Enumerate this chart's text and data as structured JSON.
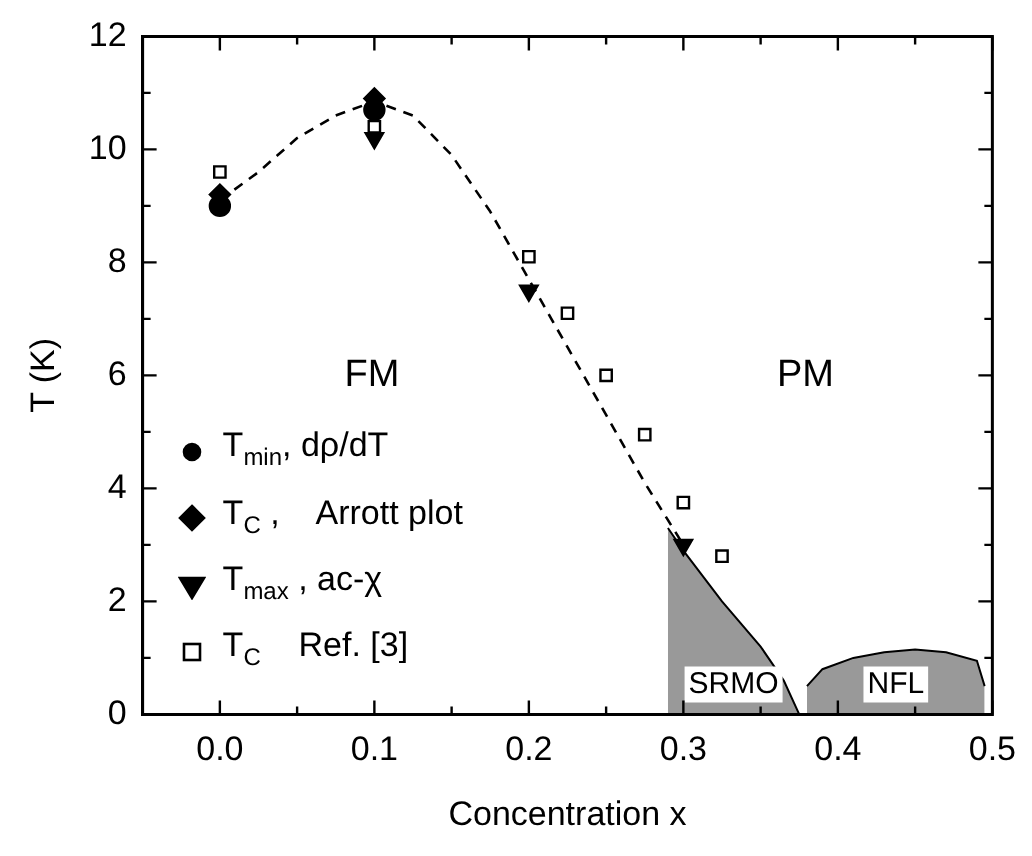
{
  "chart_data": {
    "type": "scatter",
    "xlabel": "Concentration x",
    "ylabel": "T (K)",
    "xlim": [
      -0.05,
      0.5
    ],
    "ylim": [
      0,
      12
    ],
    "xticks": [
      {
        "value": 0,
        "label": "0.0"
      },
      {
        "value": 0.05,
        "label": null
      },
      {
        "value": 0.1,
        "label": "0.1"
      },
      {
        "value": 0.15,
        "label": null
      },
      {
        "value": 0.2,
        "label": "0.2"
      },
      {
        "value": 0.25,
        "label": null
      },
      {
        "value": 0.3,
        "label": "0.3"
      },
      {
        "value": 0.35,
        "label": null
      },
      {
        "value": 0.4,
        "label": "0.4"
      },
      {
        "value": 0.45,
        "label": null
      },
      {
        "value": 0.5,
        "label": "0.5"
      }
    ],
    "yticks": [
      0,
      {
        "value": 1,
        "label": null
      },
      2,
      {
        "value": 3,
        "label": null
      },
      4,
      {
        "value": 5,
        "label": null
      },
      6,
      {
        "value": 7,
        "label": null
      },
      8,
      {
        "value": 9,
        "label": null
      },
      10,
      {
        "value": 11,
        "label": null
      },
      12
    ],
    "grid": false,
    "legend": "bottom left",
    "series": [
      {
        "type": "line",
        "line_style": "dashed",
        "marker": "none",
        "color": "#000000",
        "x": [
          0,
          0.025,
          0.05,
          0.075,
          0.1,
          0.125,
          0.15,
          0.175,
          0.2,
          0.225,
          0.25,
          0.275,
          0.3
        ],
        "values": [
          9.1,
          9.6,
          10.2,
          10.6,
          10.85,
          10.6,
          9.9,
          8.9,
          7.7,
          6.5,
          5.3,
          4.1,
          3.0
        ]
      },
      {
        "name": "SRMO",
        "type": "area",
        "color": "#000000",
        "x": [
          0.29,
          0.3,
          0.325,
          0.35,
          0.365,
          0.375
        ],
        "values": [
          3.3,
          2.9,
          2.0,
          1.2,
          0.6,
          0
        ]
      },
      {
        "name": "NFL",
        "type": "area",
        "color": "#000000",
        "x": [
          0.38,
          0.39,
          0.41,
          0.43,
          0.45,
          0.47,
          0.49,
          0.495
        ],
        "values": [
          0.5,
          0.8,
          1.0,
          1.1,
          1.15,
          1.1,
          0.95,
          0.5
        ]
      },
      {
        "name": "T$_{min}$, dρ/dT",
        "type": "scatter",
        "marker": "circle",
        "color": "#000000",
        "x": [
          0,
          0.1
        ],
        "values": [
          9.0,
          10.7
        ]
      },
      {
        "name": "T$_{C}$ ,    Arrott plot",
        "type": "scatter",
        "marker": "diamond",
        "color": "#000000",
        "x": [
          0,
          0.1
        ],
        "values": [
          9.2,
          10.9
        ]
      },
      {
        "name": "T$_{max}$ , ac-χ",
        "type": "scatter",
        "marker": "triangle",
        "color": "#000000",
        "x": [
          0.1,
          0.2,
          0.3
        ],
        "values": [
          10.2,
          7.5,
          3.0
        ]
      },
      {
        "name": "T$_{C}$    Ref. [3]",
        "type": "scatter",
        "marker": "square",
        "color": "#000000",
        "x": [
          0,
          0.1,
          0.2,
          0.225,
          0.25,
          0.275,
          0.3,
          0.325
        ],
        "values": [
          9.6,
          10.4,
          8.1,
          7.1,
          6.0,
          4.95,
          3.75,
          2.8
        ]
      }
    ],
    "annotations": [
      "FM",
      "PM"
    ]
  }
}
